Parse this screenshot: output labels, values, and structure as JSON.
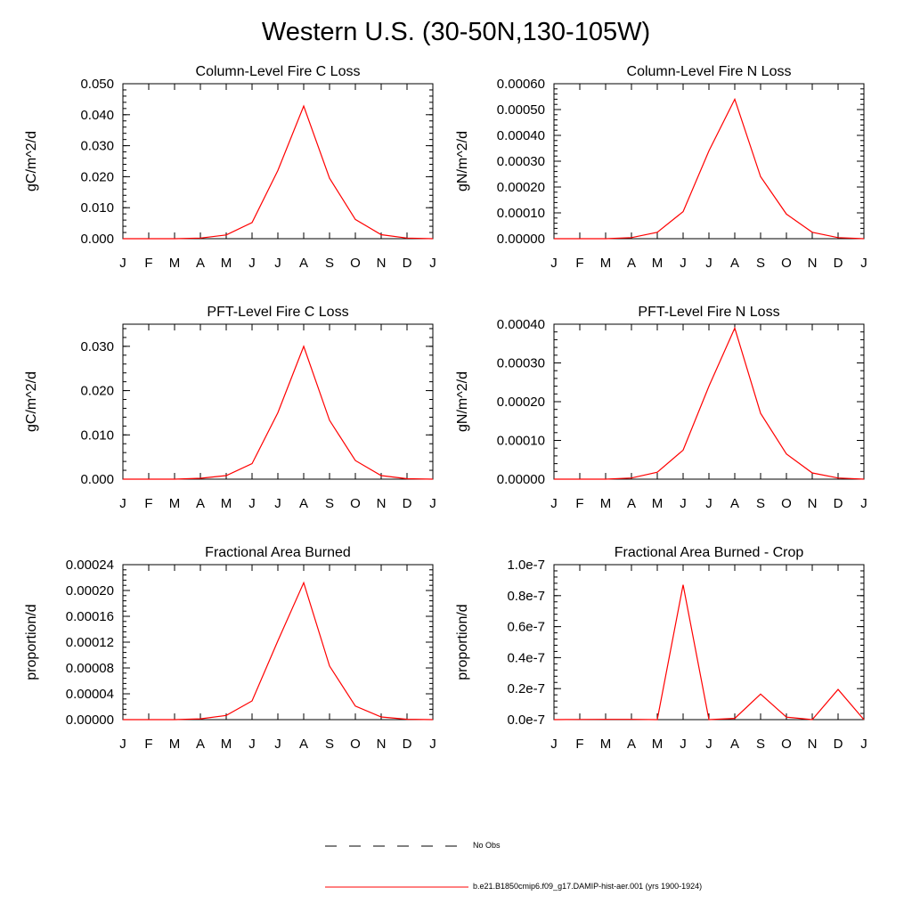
{
  "title": "Western U.S. (30-50N,130-105W)",
  "months": [
    "J",
    "F",
    "M",
    "A",
    "M",
    "J",
    "J",
    "A",
    "S",
    "O",
    "N",
    "D",
    "J"
  ],
  "line_color": "#ff0000",
  "chart_data": [
    {
      "type": "line",
      "title": "Column-Level Fire C Loss",
      "ylabel": "gC/m^2/d",
      "ylim": [
        0,
        0.05
      ],
      "yticks": [
        0,
        0.01,
        0.02,
        0.03,
        0.04,
        0.05
      ],
      "yticklabels": [
        "0.000",
        "0.010",
        "0.020",
        "0.030",
        "0.040",
        "0.050"
      ],
      "series": [
        {
          "values": [
            0.0,
            0.0,
            0.0,
            0.0002,
            0.0012,
            0.0052,
            0.022,
            0.0428,
            0.0195,
            0.0062,
            0.0013,
            0.0002,
            0.0
          ]
        }
      ]
    },
    {
      "type": "line",
      "title": "Column-Level Fire N Loss",
      "ylabel": "gN/m^2/d",
      "ylim": [
        0,
        0.0006
      ],
      "yticks": [
        0,
        0.0001,
        0.0002,
        0.0003,
        0.0004,
        0.0005,
        0.0006
      ],
      "yticklabels": [
        "0.00000",
        "0.00010",
        "0.00020",
        "0.00030",
        "0.00040",
        "0.00050",
        "0.00060"
      ],
      "series": [
        {
          "values": [
            0.0,
            0.0,
            0.0,
            4e-06,
            2.5e-05,
            0.000105,
            0.00034,
            0.00054,
            0.00024,
            9.5e-05,
            2.5e-05,
            4e-06,
            0.0
          ]
        }
      ]
    },
    {
      "type": "line",
      "title": "PFT-Level Fire C Loss",
      "ylabel": "gC/m^2/d",
      "ylim": [
        0,
        0.035
      ],
      "yticks": [
        0,
        0.01,
        0.02,
        0.03
      ],
      "yticklabels": [
        "0.000",
        "0.010",
        "0.020",
        "0.030"
      ],
      "series": [
        {
          "values": [
            0.0,
            0.0,
            0.0,
            0.0002,
            0.0008,
            0.0035,
            0.015,
            0.03,
            0.0133,
            0.0042,
            0.0008,
            0.0001,
            0.0
          ]
        }
      ]
    },
    {
      "type": "line",
      "title": "PFT-Level Fire N Loss",
      "ylabel": "gN/m^2/d",
      "ylim": [
        0,
        0.0004
      ],
      "yticks": [
        0,
        0.0001,
        0.0002,
        0.0003,
        0.0004
      ],
      "yticklabels": [
        "0.00000",
        "0.00010",
        "0.00020",
        "0.00030",
        "0.00040"
      ],
      "series": [
        {
          "values": [
            0.0,
            0.0,
            0.0,
            3e-06,
            1.8e-05,
            7.5e-05,
            0.00024,
            0.00039,
            0.00017,
            6.5e-05,
            1.6e-05,
            3e-06,
            0.0
          ]
        }
      ]
    },
    {
      "type": "line",
      "title": "Fractional Area Burned",
      "ylabel": "proportion/d",
      "ylim": [
        0,
        0.00024
      ],
      "yticks": [
        0,
        4e-05,
        8e-05,
        0.00012,
        0.00016,
        0.0002,
        0.00024
      ],
      "yticklabels": [
        "0.00000",
        "0.00004",
        "0.00008",
        "0.00012",
        "0.00016",
        "0.00020",
        "0.00024"
      ],
      "series": [
        {
          "values": [
            0.0,
            0.0,
            0.0,
            1.2e-06,
            6.5e-06,
            2.9e-05,
            0.000122,
            0.000212,
            8.3e-05,
            2.1e-05,
            4.2e-06,
            6e-07,
            0.0
          ]
        }
      ]
    },
    {
      "type": "line",
      "title": "Fractional Area Burned - Crop",
      "ylabel": "proportion/d",
      "ylim": [
        0,
        1e-07
      ],
      "yticks": [
        0,
        2e-08,
        4e-08,
        6e-08,
        8e-08,
        1e-07
      ],
      "yticklabels": [
        "0.0e-7",
        "0.2e-7",
        "0.4e-7",
        "0.6e-7",
        "0.8e-7",
        "1.0e-7"
      ],
      "series": [
        {
          "values": [
            0.0,
            1e-10,
            2e-10,
            2e-10,
            0.0,
            8.7e-08,
            0.0,
            8e-10,
            1.65e-08,
            1.6e-09,
            0.0,
            1.95e-08,
            0.0
          ]
        }
      ]
    }
  ],
  "legend": [
    {
      "label": "No Obs",
      "style": "dashed",
      "color": "#000000"
    },
    {
      "label": "b.e21.B1850cmip6.f09_g17.DAMIP-hist-aer.001 (yrs 1900-1924)",
      "style": "solid",
      "color": "#ff0000"
    }
  ]
}
